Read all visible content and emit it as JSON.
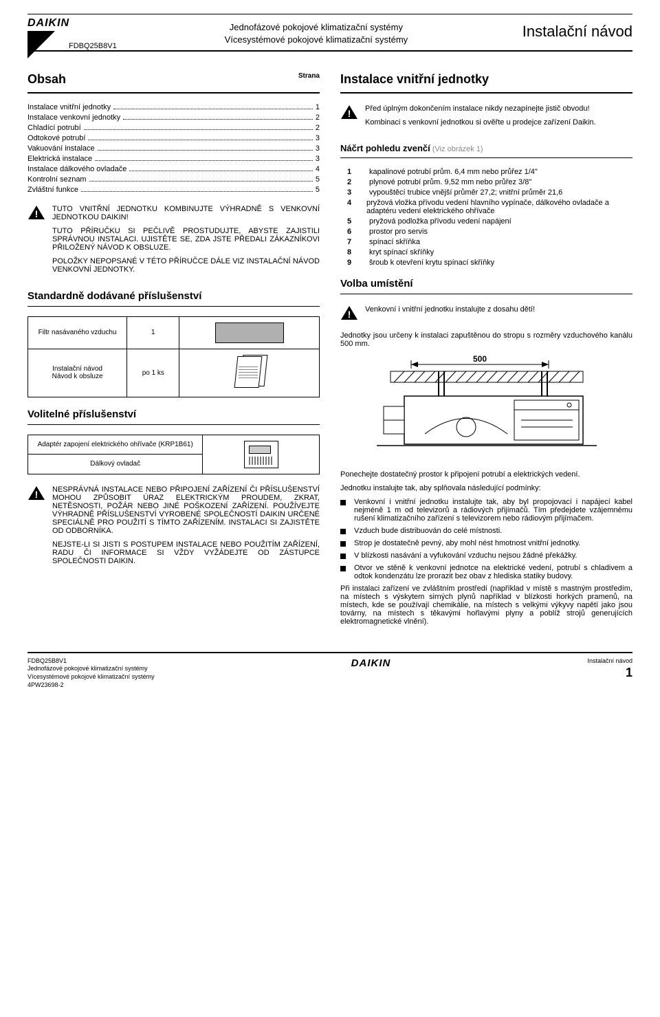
{
  "brand": "DAIKIN",
  "header": {
    "model": "FDBQ25B8V1",
    "line1": "Jednofázové pokojové klimatizační systémy",
    "line2": "Vícesystémové pokojové klimatizační systémy",
    "doc_title": "Instalační návod"
  },
  "toc": {
    "title": "Obsah",
    "page_label": "Strana",
    "items": [
      {
        "label": "Instalace vnitřní jednotky",
        "page": "1"
      },
      {
        "label": "Instalace venkovní jednotky",
        "page": "2"
      },
      {
        "label": "Chladící potrubí",
        "page": "2"
      },
      {
        "label": "Odtokové potrubí",
        "page": "3"
      },
      {
        "label": "Vakuování instalace",
        "page": "3"
      },
      {
        "label": "Elektrická instalace",
        "page": "3"
      },
      {
        "label": "Instalace dálkového ovladače",
        "page": "4"
      },
      {
        "label": "Kontrolní seznam",
        "page": "5"
      },
      {
        "label": "Zvláštní funkce",
        "page": "5"
      }
    ]
  },
  "warn1": {
    "p1": "TUTO VNITŘNÍ JEDNOTKU KOMBINUJTE VÝHRADNĚ S VENKOVNÍ JEDNOTKOU DAIKIN!",
    "p2": "TUTO PŘÍRUČKU SI PEČLIVĚ PROSTUDUJTE, ABYSTE ZAJISTILI SPRÁVNOU INSTALACI. UJISTĚTE SE, ZDA JSTE PŘEDALI ZÁKAZNÍKOVI PŘILOŽENÝ NÁVOD K OBSLUZE.",
    "p3": "POLOŽKY NEPOPSANÉ V TÉTO PŘÍRUČCE DÁLE VIZ INSTALAČNÍ NÁVOD VENKOVNÍ JEDNOTKY."
  },
  "std_acc": {
    "title": "Standardně dodávané příslušenství",
    "row1_label": "Filtr nasávaného vzduchu",
    "row1_qty": "1",
    "row2_label": "Instalační návod\nNávod k obsluze",
    "row2_qty": "po 1 ks"
  },
  "opt_acc": {
    "title": "Volitelné příslušenství",
    "row1": "Adaptér zapojení elektrického ohřívače (KRP1B61)",
    "row2": "Dálkový ovladač"
  },
  "warn2": {
    "p1": "NESPRÁVNÁ INSTALACE NEBO PŘIPOJENÍ ZAŘÍZENÍ ČI PŘÍSLUŠENSTVÍ MOHOU ZPŮSOBIT ÚRAZ ELEKTRICKÝM PROUDEM, ZKRAT, NETĚSNOSTI, POŽÁR NEBO JINÉ POŠKOZENÍ ZAŘÍZENÍ. POUŽÍVEJTE VÝHRADNĚ PŘÍSLUŠENSTVÍ VYROBENÉ SPOLEČNOSTÍ DAIKIN URČENÉ SPECIÁLNĚ PRO POUŽITÍ S TÍMTO ZAŘÍZENÍM. INSTALACI SI ZAJISTĚTE OD ODBORNÍKA.",
    "p2": "NEJSTE-LI SI JISTI S POSTUPEM INSTALACE NEBO POUŽITÍM ZAŘÍZENÍ, RADU ČI INFORMACE SI VŽDY VYŽÁDEJTE OD ZÁSTUPCE SPOLEČNOSTI DAIKIN."
  },
  "right": {
    "title": "Instalace vnitřní jednotky",
    "warn_p1": "Před úplným dokončením instalace nikdy nezapínejte jistič obvodu!",
    "warn_p2": "Kombinaci s venkovní jednotkou si ověřte u prodejce zařízení Daikin.",
    "nacrt_title": "Náčrt pohledu zvenčí",
    "nacrt_viz": "(Viz obrázek 1)",
    "legend": [
      {
        "n": "1",
        "t": "kapalinové potrubí prům. 6,4 mm nebo průřez 1/4\""
      },
      {
        "n": "2",
        "t": "plynové potrubí prům. 9,52 mm nebo průřez 3/8\""
      },
      {
        "n": "3",
        "t": "vypouštěcí trubice vnější průměr 27,2; vnitřní průměr 21,6"
      },
      {
        "n": "4",
        "t": "pryžová vložka přívodu vedení hlavního vypínače, dálkového ovladače a adaptéru vedení elektrického ohřívače"
      },
      {
        "n": "5",
        "t": "pryžová podložka přívodu vedení napájení"
      },
      {
        "n": "6",
        "t": "prostor pro servis"
      },
      {
        "n": "7",
        "t": "spínací skříňka"
      },
      {
        "n": "8",
        "t": "kryt spínací skříňky"
      },
      {
        "n": "9",
        "t": "šroub k otevření krytu spínací skříňky"
      }
    ],
    "volba_title": "Volba umístění",
    "warn_children": "Venkovní i vnitřní jednotku instalujte z dosahu dětí!",
    "p_units": "Jednotky jsou určeny k instalaci zapuštěnou do stropu s rozměry vzduchového kanálu 500 mm.",
    "diagram_label": "500",
    "p_space": "Ponechejte dostatečný prostor k připojení potrubí a elektrických vedení.",
    "p_cond": "Jednotku instalujte tak, aby splňovala následující podmínky:",
    "bullets": [
      "Venkovní i vnitřní jednotku instalujte tak, aby byl propojovací i napájecí kabel nejméně 1 m od televizorů a rádiových přijímačů. Tím předejdete vzájemnému rušení klimatizačního zařízení s televizorem nebo rádiovým přijímačem.",
      "Vzduch bude distribuován do celé místnosti.",
      "Strop je dostatečně pevný, aby mohl nést hmotnost vnitřní jednotky.",
      "V blízkosti nasávání a vyfukování vzduchu nejsou žádné překážky.",
      "Otvor ve stěně k venkovní jednotce na elektrické vedení, potrubí s chladivem a odtok kondenzátu lze prorazit bez obav z hlediska statiky budovy."
    ],
    "p_special": "Při instalaci zařízení ve zvláštním prostředí (například v místě s mastným prostředím, na místech s výskytem sirných plynů například v blízkosti horkých pramenů, na místech, kde se používají chemikálie, na místech s velkými výkyvy napětí jako jsou továrny, na místech s těkavými hořlavými plyny a poblíž strojů generujících elektromagnetické vlnění)."
  },
  "footer": {
    "l1": "FDBQ25B8V1",
    "l2": "Jednofázové pokojové klimatizační systémy",
    "l3": "Vícesystémové pokojové klimatizační systémy",
    "l4": "4PW23698-2",
    "r1": "Instalační návod",
    "r2": "1"
  }
}
